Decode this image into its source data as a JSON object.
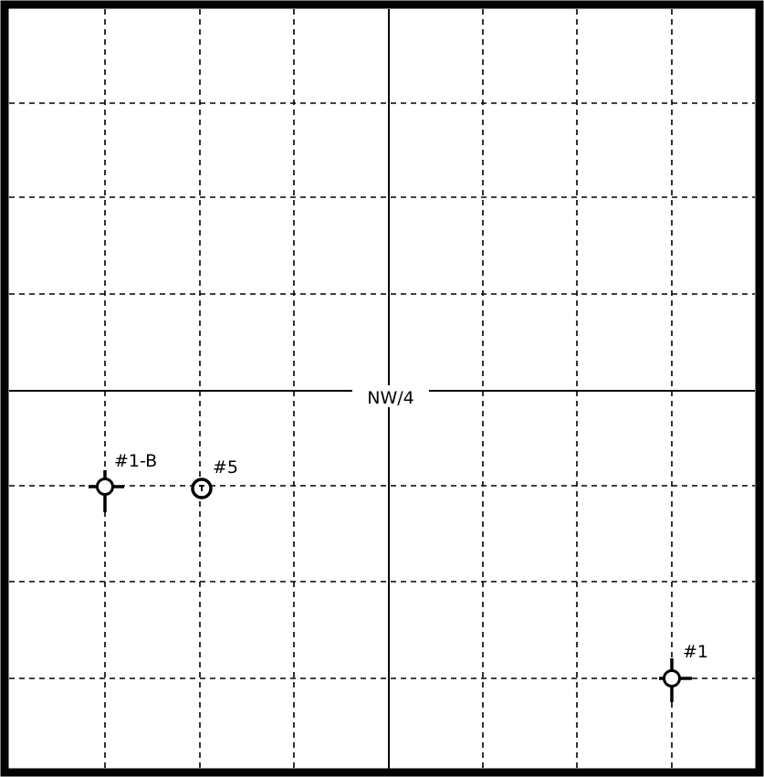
{
  "quarter_label": "NW/4",
  "wells": [
    {
      "label": "#1-B",
      "symbol": "oil-well",
      "col": 1,
      "row": 5
    },
    {
      "label": "#5",
      "symbol": "location",
      "col": 2,
      "row": 5
    },
    {
      "label": "#1",
      "symbol": "oil-well",
      "col": 7,
      "row": 7
    }
  ],
  "colors": {
    "line": "#000000",
    "background": "#ffffff"
  }
}
